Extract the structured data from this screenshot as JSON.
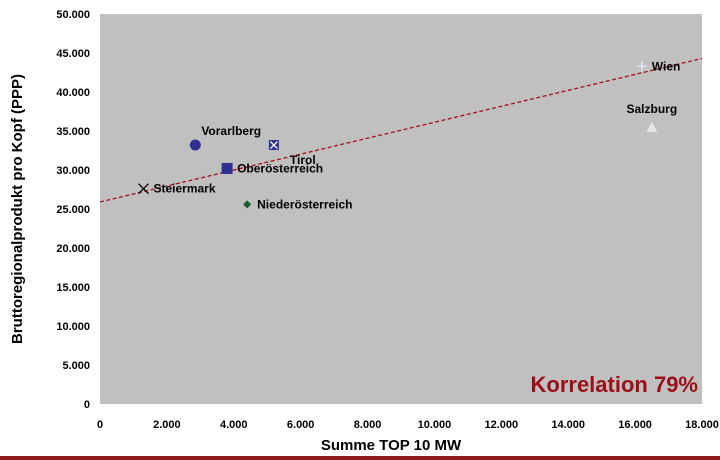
{
  "chart_data": {
    "type": "scatter",
    "xlabel": "Summe TOP 10 MW",
    "ylabel": "Bruttoregionalprodukt pro Kopf (PPP)",
    "xlim": [
      0,
      18000
    ],
    "ylim": [
      0,
      50000
    ],
    "x_ticks": [
      0,
      2000,
      4000,
      6000,
      8000,
      10000,
      12000,
      14000,
      16000,
      18000
    ],
    "x_tick_labels": [
      "0",
      "2.000",
      "4.000",
      "6.000",
      "8.000",
      "10.000",
      "12.000",
      "14.000",
      "16.000",
      "18.000"
    ],
    "y_ticks": [
      0,
      5000,
      10000,
      15000,
      20000,
      25000,
      30000,
      35000,
      40000,
      45000,
      50000
    ],
    "y_tick_labels": [
      "0",
      "5.000",
      "10.000",
      "15.000",
      "20.000",
      "25.000",
      "30.000",
      "35.000",
      "40.000",
      "45.000",
      "50.000"
    ],
    "grid": false,
    "points": [
      {
        "name": "Wien",
        "x": 16200,
        "y": 43300,
        "marker": "plus",
        "color": "#dbe9f2",
        "label_pos": "right"
      },
      {
        "name": "Salzburg",
        "x": 16500,
        "y": 35400,
        "marker": "triangle",
        "color": "#e6e6e6",
        "label_pos": "above"
      },
      {
        "name": "Vorarlberg",
        "x": 2850,
        "y": 33200,
        "marker": "circle",
        "color": "#2e3192",
        "label_pos": "above-right"
      },
      {
        "name": "Tirol",
        "x": 5200,
        "y": 33200,
        "marker": "boxed-x",
        "color": "#2e3192",
        "label_pos": "below-right"
      },
      {
        "name": "Oberösterreich",
        "x": 3800,
        "y": 30200,
        "marker": "square",
        "color": "#2e3192",
        "label_pos": "right"
      },
      {
        "name": "Steiermark",
        "x": 1300,
        "y": 27600,
        "marker": "x",
        "color": "#000000",
        "label_pos": "right"
      },
      {
        "name": "Niederösterreich",
        "x": 4400,
        "y": 25600,
        "marker": "diamond",
        "color": "#1a5c2a",
        "label_pos": "right"
      }
    ],
    "trendline": {
      "x": [
        0,
        18000
      ],
      "y": [
        25900,
        44300
      ],
      "style": "dashed",
      "color": "#a0121c"
    },
    "annotation": "Korrelation 79%"
  },
  "colors": {
    "plot_background": "#c0c0c0",
    "annotation": "#9b1018",
    "bottom_rule": "#8e1a1e"
  }
}
